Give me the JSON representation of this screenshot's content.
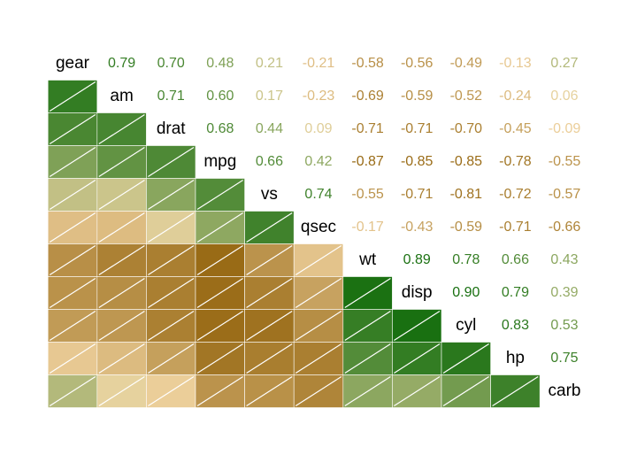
{
  "chart_data": {
    "type": "corrgram",
    "variables": [
      "gear",
      "am",
      "drat",
      "mpg",
      "vs",
      "qsec",
      "wt",
      "disp",
      "cyl",
      "hp",
      "carb"
    ],
    "values": [
      [
        0.79,
        0.7,
        0.48,
        0.21,
        -0.21,
        -0.58,
        -0.56,
        -0.49,
        -0.13,
        0.27
      ],
      [
        0.71,
        0.6,
        0.17,
        -0.23,
        -0.69,
        -0.59,
        -0.52,
        -0.24,
        0.06
      ],
      [
        0.68,
        0.44,
        0.09,
        -0.71,
        -0.71,
        -0.7,
        -0.45,
        -0.09
      ],
      [
        0.66,
        0.42,
        -0.87,
        -0.85,
        -0.85,
        -0.78,
        -0.55
      ],
      [
        0.74,
        -0.55,
        -0.71,
        -0.81,
        -0.72,
        -0.57
      ],
      [
        -0.17,
        -0.43,
        -0.59,
        -0.71,
        -0.66
      ],
      [
        0.89,
        0.78,
        0.66,
        0.43
      ],
      [
        0.9,
        0.79,
        0.39
      ],
      [
        0.83,
        0.53
      ],
      [
        0.75
      ]
    ],
    "value_labels": [
      [
        "0.79",
        "0.70",
        "0.48",
        "0.21",
        "-0.21",
        "-0.58",
        "-0.56",
        "-0.49",
        "-0.13",
        "0.27"
      ],
      [
        "0.71",
        "0.60",
        "0.17",
        "-0.23",
        "-0.69",
        "-0.59",
        "-0.52",
        "-0.24",
        "0.06"
      ],
      [
        "0.68",
        "0.44",
        "0.09",
        "-0.71",
        "-0.71",
        "-0.70",
        "-0.45",
        "-0.09"
      ],
      [
        "0.66",
        "0.42",
        "-0.87",
        "-0.85",
        "-0.85",
        "-0.78",
        "-0.55"
      ],
      [
        "0.74",
        "-0.55",
        "-0.71",
        "-0.81",
        "-0.72",
        "-0.57"
      ],
      [
        "-0.17",
        "-0.43",
        "-0.59",
        "-0.71",
        "-0.66"
      ],
      [
        "0.89",
        "0.78",
        "0.66",
        "0.43"
      ],
      [
        "0.90",
        "0.79",
        "0.39"
      ],
      [
        "0.83",
        "0.53"
      ],
      [
        "0.75"
      ]
    ],
    "colors": {
      "negative": "#8b5a00",
      "zero": "#f5d9a8",
      "positive": "#006400"
    }
  }
}
